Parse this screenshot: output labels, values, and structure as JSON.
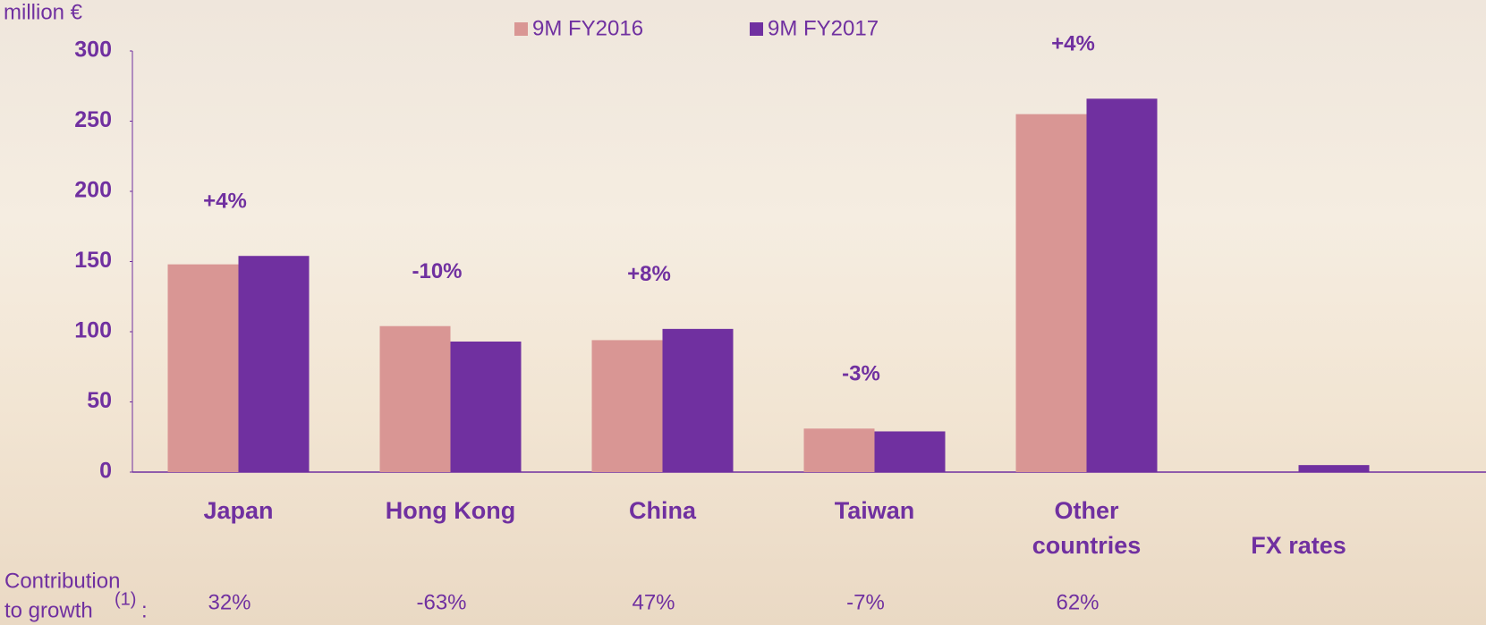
{
  "chart_data": {
    "type": "bar",
    "y_label": "million €",
    "categories": [
      "Japan",
      "Hong Kong",
      "China",
      "Taiwan",
      "Other countries",
      "FX rates"
    ],
    "series": [
      {
        "name": "9M FY2016",
        "color": "#d99694",
        "values": [
          148,
          104,
          94,
          31,
          255,
          null
        ]
      },
      {
        "name": "9M FY2017",
        "color": "#7030a0",
        "values": [
          154,
          93,
          102,
          29,
          266,
          5
        ]
      }
    ],
    "growth_labels": [
      "+4%",
      "-10%",
      "+8%",
      "-3%",
      "+4%",
      null
    ],
    "contribution_label": {
      "line1": "Contribution",
      "line2": "to growth",
      "footnote": "(1)",
      "colon": ":"
    },
    "contribution": [
      "32%",
      "-63%",
      "47%",
      "-7%",
      "62%",
      null
    ],
    "ylim": [
      0,
      300
    ],
    "yticks": [
      0,
      50,
      100,
      150,
      200,
      250,
      300
    ],
    "grid": false
  }
}
